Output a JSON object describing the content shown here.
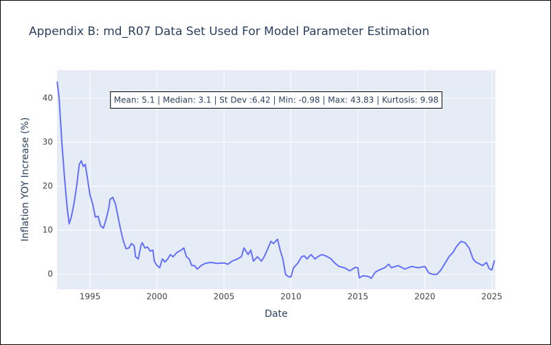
{
  "chart_data": {
    "type": "line",
    "title": "Appendix B: md_R07 Data Set Used For Model Parameter Estimation",
    "x_label": "Date",
    "y_label": "Inflation YOY Increase (%)",
    "annotation": "Mean: 5.1 | Median: 3.1 | St Dev :6.42 | Min: -0.98 | Max: 43.83 | Kurtosis: 9.98",
    "grid": true,
    "plot_bgcolor": "#e5ecf6",
    "xlim": [
      1992.54,
      2025.26
    ],
    "xticks": [
      1995,
      2000,
      2005,
      2010,
      2015,
      2020,
      2025
    ],
    "ylim": [
      -3.4,
      46.4
    ],
    "yticks": [
      0,
      10,
      20,
      30,
      40
    ],
    "x": [
      1992.55,
      1992.7,
      1992.9,
      1993.1,
      1993.3,
      1993.45,
      1993.6,
      1993.8,
      1994.0,
      1994.2,
      1994.35,
      1994.5,
      1994.65,
      1994.8,
      1995.0,
      1995.2,
      1995.4,
      1995.6,
      1995.8,
      1996.0,
      1996.2,
      1996.4,
      1996.5,
      1996.7,
      1996.9,
      1997.1,
      1997.3,
      1997.5,
      1997.7,
      1997.9,
      1998.1,
      1998.3,
      1998.4,
      1998.6,
      1998.8,
      1998.9,
      1999.1,
      1999.3,
      1999.5,
      1999.7,
      1999.8,
      2000.0,
      2000.2,
      2000.4,
      2000.6,
      2000.8,
      2001.0,
      2001.2,
      2001.5,
      2001.8,
      2002.0,
      2002.2,
      2002.4,
      2002.6,
      2002.8,
      2003.0,
      2003.3,
      2003.6,
      2004.0,
      2004.5,
      2005.0,
      2005.3,
      2005.6,
      2006.0,
      2006.3,
      2006.5,
      2006.8,
      2007.0,
      2007.2,
      2007.5,
      2007.8,
      2008.0,
      2008.3,
      2008.5,
      2008.7,
      2009.0,
      2009.2,
      2009.4,
      2009.6,
      2009.8,
      2010.0,
      2010.2,
      2010.5,
      2010.8,
      2011.0,
      2011.2,
      2011.5,
      2011.8,
      2012.0,
      2012.3,
      2012.6,
      2013.0,
      2013.3,
      2013.6,
      2014.0,
      2014.4,
      2014.8,
      2015.0,
      2015.1,
      2015.4,
      2015.8,
      2016.0,
      2016.3,
      2016.6,
      2017.0,
      2017.3,
      2017.5,
      2018.0,
      2018.5,
      2019.0,
      2019.5,
      2020.0,
      2020.3,
      2020.6,
      2020.9,
      2021.2,
      2021.5,
      2021.8,
      2022.1,
      2022.4,
      2022.7,
      2023.0,
      2023.3,
      2023.6,
      2023.8,
      2024.0,
      2024.3,
      2024.6,
      2024.8,
      2025.0,
      2025.2
    ],
    "series": [
      {
        "name": "Inflation YOY Increase (%)",
        "color": "#636efa",
        "values": [
          43.8,
          40,
          30,
          22,
          15,
          11.5,
          13,
          16,
          20,
          25,
          25.8,
          24.5,
          25,
          22,
          18,
          16,
          13,
          13.2,
          11,
          10.5,
          12.5,
          15,
          17,
          17.5,
          16,
          13,
          10,
          7.5,
          5.8,
          6,
          7,
          6.5,
          4,
          3.5,
          6.5,
          7.2,
          6,
          6.2,
          5.3,
          5.5,
          3,
          2,
          1.5,
          3.5,
          2.8,
          3.5,
          4.5,
          4,
          5,
          5.5,
          6,
          4,
          3.5,
          2,
          2,
          1.2,
          2,
          2.5,
          2.7,
          2.5,
          2.6,
          2.3,
          3,
          3.5,
          4,
          6,
          4.5,
          5.5,
          3,
          4,
          3,
          4,
          6,
          7.5,
          7,
          8,
          5.5,
          3.5,
          0,
          -0.5,
          -0.6,
          1.5,
          2.5,
          4,
          4.2,
          3.5,
          4.5,
          3.5,
          4,
          4.5,
          4.2,
          3.5,
          2.5,
          1.8,
          1.5,
          0.8,
          1.6,
          1.5,
          -0.8,
          -0.3,
          -0.5,
          -0.9,
          0.5,
          1,
          1.5,
          2.3,
          1.5,
          2,
          1.2,
          1.8,
          1.5,
          1.8,
          0.3,
          0,
          0,
          1,
          2.5,
          4,
          5,
          6.5,
          7.5,
          7.2,
          6,
          3.5,
          2.8,
          2.5,
          2,
          2.7,
          1.3,
          1,
          3.2
        ]
      }
    ]
  }
}
